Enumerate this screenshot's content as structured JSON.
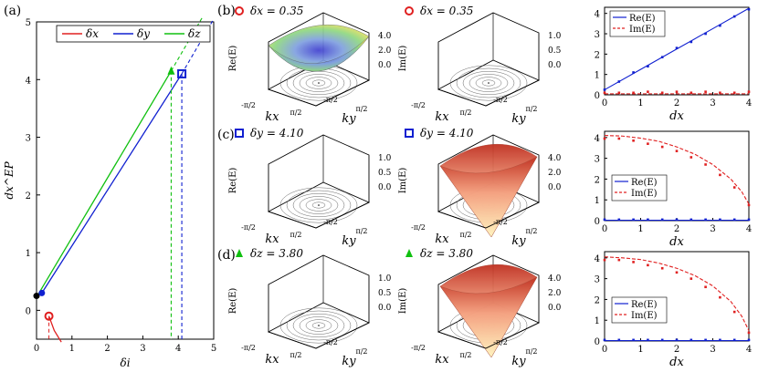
{
  "panels": {
    "a": "(a)",
    "b": "(b)",
    "c": "(c)",
    "d": "(d)"
  },
  "panel_a": {
    "legend": [
      "δx",
      "δy",
      "δz"
    ],
    "xlabel": "δi",
    "ylabel": "dx^EP",
    "xticks": [
      "0",
      "1",
      "2",
      "3",
      "4",
      "5"
    ],
    "yticks": [
      "0",
      "1",
      "2",
      "3",
      "4",
      "5"
    ]
  },
  "rows": [
    {
      "key": "b",
      "marker": "circle",
      "marker_color": "#e02020",
      "left_label": "δx = 0.35",
      "mid_label": "δx = 0.35",
      "left_z": "Re(E)",
      "left_zticks": [
        "4.0",
        "2.0",
        "0.0"
      ],
      "left_surface": "blue",
      "mid_z": "Im(E)",
      "mid_zticks": [
        "1.0",
        "0.5",
        "0.0"
      ],
      "mid_surface": "none"
    },
    {
      "key": "c",
      "marker": "square",
      "marker_color": "#1020d0",
      "left_label": "δy = 4.10",
      "mid_label": "δy = 4.10",
      "left_z": "Re(E)",
      "left_zticks": [
        "1.0",
        "0.5",
        "0.0"
      ],
      "left_surface": "none",
      "mid_z": "Im(E)",
      "mid_zticks": [
        "4.0",
        "2.0",
        "0.0"
      ],
      "mid_surface": "red"
    },
    {
      "key": "d",
      "marker": "triangle",
      "marker_color": "#10c010",
      "left_label": "δz = 3.80",
      "mid_label": "δz = 3.80",
      "left_z": "Re(E)",
      "left_zticks": [
        "1.0",
        "0.5",
        "0.0"
      ],
      "left_surface": "none",
      "mid_z": "Im(E)",
      "mid_zticks": [
        "4.0",
        "2.0",
        "0.0"
      ],
      "mid_surface": "red"
    }
  ],
  "surface_axes": {
    "kx": "kx",
    "ky": "ky",
    "ticks": [
      "-π/2",
      "π/2"
    ]
  },
  "chart_data": [
    {
      "type": "line",
      "panel": "a",
      "xlabel": "δi",
      "ylabel": "dx^EP",
      "xlim": [
        0,
        5
      ],
      "ylim": [
        -0.5,
        5
      ],
      "series": [
        {
          "name": "δx",
          "color": "#e02020",
          "x": [
            0.35,
            0.5,
            0.7
          ],
          "y": [
            -0.1,
            -0.35,
            -0.55
          ]
        },
        {
          "name": "δy",
          "color": "#1020d0",
          "x": [
            0.15,
            4.1
          ],
          "y": [
            0.3,
            4.1
          ]
        },
        {
          "name": "δz",
          "color": "#10c010",
          "x": [
            0.05,
            3.8
          ],
          "y": [
            0.28,
            4.15
          ]
        }
      ],
      "points": [
        {
          "x": 0,
          "y": 0.25,
          "color": "#000000"
        },
        {
          "x": 0.15,
          "y": 0.3,
          "color": "#1020d0"
        },
        {
          "x": 0.35,
          "y": -0.1,
          "marker": "circle",
          "color": "#e02020"
        },
        {
          "x": 4.1,
          "y": 4.1,
          "marker": "square",
          "color": "#1020d0"
        },
        {
          "x": 3.8,
          "y": 4.15,
          "marker": "triangle",
          "color": "#10c010"
        }
      ]
    },
    {
      "type": "line",
      "panel": "b-right",
      "xlabel": "dx",
      "xlim": [
        0,
        4
      ],
      "ylim": [
        0,
        4.3
      ],
      "xticks": [
        "0",
        "1",
        "2",
        "3",
        "4"
      ],
      "yticks": [
        "0",
        "1",
        "2",
        "3",
        "4"
      ],
      "legend": [
        "Re(E)",
        "Im(E)"
      ],
      "series": [
        {
          "name": "Re(E)",
          "color": "#1020d0",
          "x": [
            0,
            1,
            2,
            3,
            4
          ],
          "y": [
            0.25,
            1.25,
            2.25,
            3.25,
            4.25
          ]
        },
        {
          "name": "Im(E)",
          "color": "#e02020",
          "x": [
            0,
            1,
            2,
            3,
            4
          ],
          "y": [
            0.05,
            0.05,
            0.05,
            0.05,
            0.05
          ]
        }
      ],
      "scatter": [
        {
          "color": "#1020d0",
          "x": [
            0,
            0.4,
            0.8,
            1.2,
            1.6,
            2.0,
            2.4,
            2.8,
            3.2,
            3.6,
            4.0
          ],
          "y": [
            0.25,
            0.65,
            1.1,
            1.4,
            1.85,
            2.3,
            2.6,
            3.0,
            3.4,
            3.85,
            4.2
          ]
        },
        {
          "color": "#e02020",
          "x": [
            0,
            0.4,
            0.8,
            1.2,
            1.6,
            2.0,
            2.4,
            2.8,
            3.2,
            3.6,
            4.0
          ],
          "y": [
            0.1,
            0.1,
            0.1,
            0.15,
            0.1,
            0.15,
            0.1,
            0.15,
            0.1,
            0.1,
            0.15
          ]
        }
      ]
    },
    {
      "type": "line",
      "panel": "c-right",
      "xlabel": "dx",
      "xlim": [
        0,
        4
      ],
      "ylim": [
        0,
        4.3
      ],
      "xticks": [
        "0",
        "1",
        "2",
        "3",
        "4"
      ],
      "yticks": [
        "0",
        "1",
        "2",
        "3",
        "4"
      ],
      "legend": [
        "Re(E)",
        "Im(E)"
      ],
      "series": [
        {
          "name": "Re(E)",
          "color": "#1020d0",
          "x": [
            0,
            4
          ],
          "y": [
            0.02,
            0.02
          ]
        },
        {
          "name": "Im(E)",
          "color": "#e02020",
          "x": [
            0,
            0.5,
            1,
            1.5,
            2,
            2.5,
            3,
            3.5,
            3.8,
            4
          ],
          "y": [
            4.1,
            4.07,
            3.97,
            3.82,
            3.55,
            3.2,
            2.7,
            2.0,
            1.4,
            0.8
          ]
        }
      ],
      "scatter": [
        {
          "color": "#1020d0",
          "x": [
            0,
            0.4,
            0.8,
            1.2,
            1.6,
            2.0,
            2.4,
            2.8,
            3.2,
            3.6,
            4.0
          ],
          "y": [
            0.05,
            0.05,
            0.05,
            0.05,
            0.05,
            0.05,
            0.05,
            0.05,
            0.05,
            0.05,
            0.05
          ]
        },
        {
          "color": "#e02020",
          "x": [
            0,
            0.4,
            0.8,
            1.2,
            1.6,
            2.0,
            2.4,
            2.8,
            3.2,
            3.6,
            4.0
          ],
          "y": [
            3.95,
            3.95,
            3.85,
            3.7,
            3.55,
            3.35,
            3.05,
            2.7,
            2.2,
            1.6,
            0.75
          ]
        }
      ]
    },
    {
      "type": "line",
      "panel": "d-right",
      "xlabel": "dx",
      "xlim": [
        0,
        4
      ],
      "ylim": [
        0,
        4.3
      ],
      "xticks": [
        "0",
        "1",
        "2",
        "3",
        "4"
      ],
      "yticks": [
        "0",
        "1",
        "2",
        "3",
        "4"
      ],
      "legend": [
        "Re(E)",
        "Im(E)"
      ],
      "series": [
        {
          "name": "Re(E)",
          "color": "#1020d0",
          "x": [
            0,
            4
          ],
          "y": [
            0.02,
            0.02
          ]
        },
        {
          "name": "Im(E)",
          "color": "#e02020",
          "x": [
            0,
            0.5,
            1,
            1.5,
            2,
            2.5,
            3,
            3.5,
            3.8,
            4
          ],
          "y": [
            4.05,
            4.0,
            3.92,
            3.75,
            3.5,
            3.15,
            2.65,
            1.9,
            1.2,
            0.5
          ]
        }
      ],
      "scatter": [
        {
          "color": "#1020d0",
          "x": [
            0,
            0.4,
            0.8,
            1.2,
            1.6,
            2.0,
            2.4,
            2.8,
            3.2,
            3.6,
            4.0
          ],
          "y": [
            0.05,
            0.05,
            0.05,
            0.05,
            0.05,
            0.05,
            0.05,
            0.05,
            0.05,
            0.05,
            0.05
          ]
        },
        {
          "color": "#e02020",
          "x": [
            0,
            0.4,
            0.8,
            1.2,
            1.6,
            2.0,
            2.4,
            2.8,
            3.2,
            3.6,
            4.0
          ],
          "y": [
            3.9,
            3.9,
            3.8,
            3.65,
            3.5,
            3.3,
            3.0,
            2.6,
            2.1,
            1.4,
            0.4
          ]
        }
      ]
    }
  ]
}
